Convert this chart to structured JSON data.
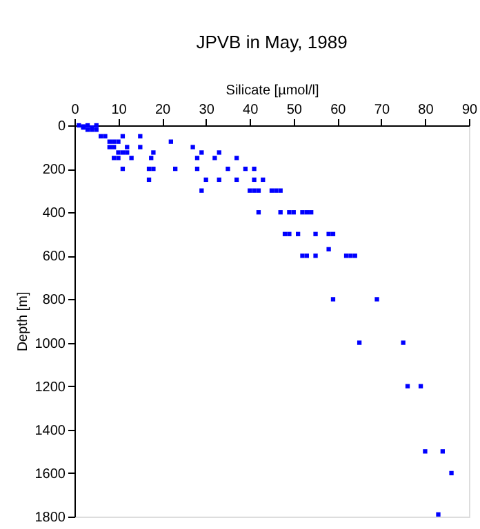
{
  "chart_data": {
    "type": "scatter",
    "title": "JPVB in May, 1989",
    "xlabel": "Silicate [µmol/l]",
    "ylabel": "Depth [m]",
    "xlim": [
      0,
      90
    ],
    "xticks": [
      0,
      10,
      20,
      30,
      40,
      50,
      60,
      70,
      80,
      90
    ],
    "ylim": [
      1800,
      0
    ],
    "yticks": [
      0,
      200,
      400,
      600,
      800,
      1000,
      1200,
      1400,
      1600,
      1800
    ],
    "grid": false,
    "marker": "square",
    "series": [
      {
        "color": "#0000ff",
        "x": [
          1,
          2,
          3,
          3,
          4,
          4,
          5,
          5,
          2,
          6,
          7,
          11,
          15,
          8,
          9,
          10,
          22,
          8,
          9,
          12,
          15,
          27,
          10,
          11,
          12,
          18,
          29,
          33,
          9,
          10,
          13,
          17.5,
          28,
          32,
          37,
          11,
          17,
          18,
          23,
          28,
          35,
          39,
          41,
          17,
          30,
          33,
          37,
          41,
          43,
          29,
          40,
          41,
          42,
          45,
          46,
          47,
          42,
          47,
          49,
          50,
          52,
          53,
          54,
          48,
          49,
          51,
          55,
          58,
          59,
          58,
          52,
          53,
          55,
          62,
          63,
          64,
          59,
          69,
          65,
          75,
          76,
          79,
          80,
          84,
          86,
          83
        ],
        "values": [
          0,
          10,
          0,
          20,
          10,
          20,
          0,
          20,
          5,
          50,
          50,
          50,
          50,
          75,
          75,
          75,
          75,
          100,
          100,
          100,
          100,
          100,
          125,
          125,
          125,
          125,
          125,
          125,
          150,
          150,
          150,
          150,
          150,
          150,
          150,
          200,
          200,
          200,
          200,
          200,
          200,
          200,
          200,
          250,
          250,
          250,
          250,
          250,
          250,
          300,
          300,
          300,
          300,
          300,
          300,
          300,
          400,
          400,
          400,
          400,
          400,
          400,
          400,
          500,
          500,
          500,
          500,
          500,
          500,
          570,
          600,
          600,
          600,
          600,
          600,
          600,
          800,
          800,
          1000,
          1000,
          1200,
          1200,
          1500,
          1500,
          1600,
          1790
        ]
      }
    ]
  }
}
